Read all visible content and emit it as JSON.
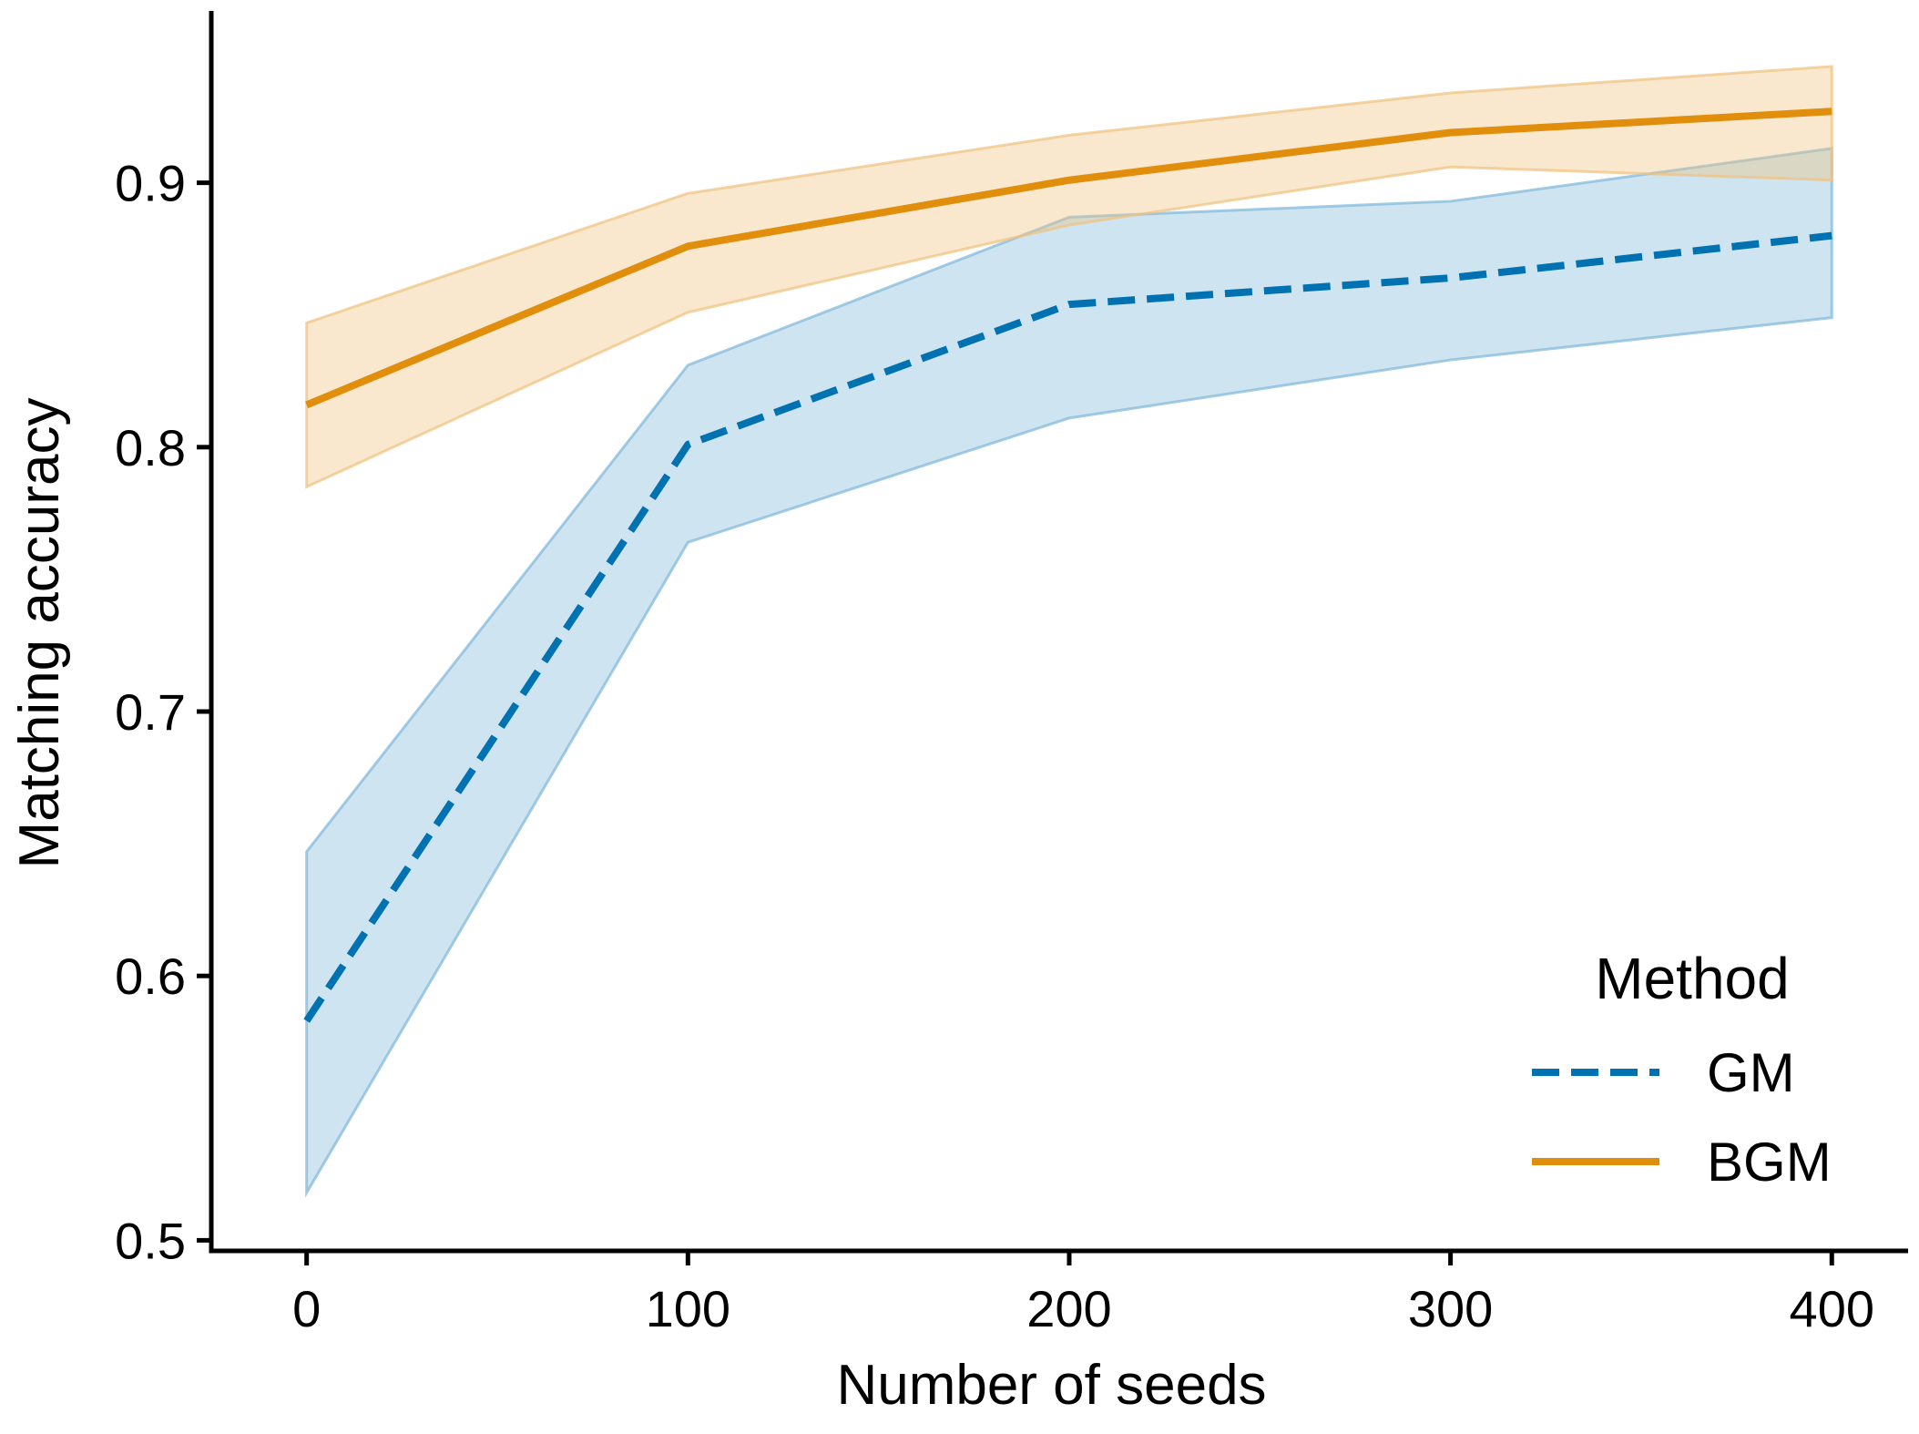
{
  "chart_data": {
    "type": "line",
    "xlabel": "Number of seeds",
    "ylabel": "Matching accuracy",
    "x": [
      0,
      100,
      200,
      300,
      400
    ],
    "xlim": [
      -25,
      420
    ],
    "ylim": [
      0.496,
      0.965
    ],
    "xticks": [
      0,
      100,
      200,
      300,
      400
    ],
    "yticks": [
      0.5,
      0.6,
      0.7,
      0.8,
      0.9
    ],
    "xtick_labels": [
      "0",
      "100",
      "200",
      "300",
      "400"
    ],
    "ytick_labels": [
      "0.5",
      "0.6",
      "0.7",
      "0.8",
      "0.9"
    ],
    "grid": false,
    "legend": {
      "title": "Method",
      "placement": "lower-right"
    },
    "series": [
      {
        "name": "GM",
        "style": "dashed",
        "color": "#0072B2",
        "band_color": "#7FB7DA",
        "values": [
          0.583,
          0.801,
          0.854,
          0.864,
          0.88
        ],
        "lower": [
          0.518,
          0.764,
          0.811,
          0.833,
          0.849
        ],
        "upper": [
          0.647,
          0.831,
          0.887,
          0.893,
          0.913
        ]
      },
      {
        "name": "BGM",
        "style": "solid",
        "color": "#E08E0B",
        "band_color": "#EFC27F",
        "values": [
          0.816,
          0.876,
          0.901,
          0.919,
          0.927
        ],
        "lower": [
          0.785,
          0.851,
          0.884,
          0.906,
          0.901
        ],
        "upper": [
          0.847,
          0.896,
          0.918,
          0.934,
          0.944
        ]
      }
    ]
  }
}
